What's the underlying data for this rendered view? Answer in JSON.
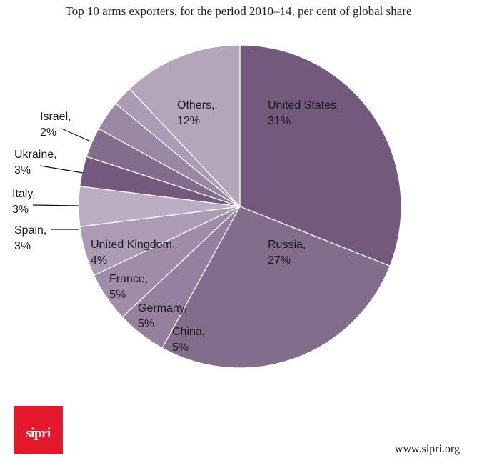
{
  "chart_data": {
    "type": "pie",
    "title": "Top 10 arms exporters, for the period 2010–14, per cent of global share",
    "slices": [
      {
        "label": "United States,",
        "value_label": "31%",
        "value": 31,
        "color": "#735a7d"
      },
      {
        "label": "Russia,",
        "value_label": "27%",
        "value": 27,
        "color": "#836d8c"
      },
      {
        "label": "China,",
        "value_label": "5%",
        "value": 5,
        "color": "#9580a0"
      },
      {
        "label": "Germany,",
        "value_label": "5%",
        "value": 5,
        "color": "#a08ca9"
      },
      {
        "label": "France,",
        "value_label": "5%",
        "value": 5,
        "color": "#ad9ab5"
      },
      {
        "label": "United Kingdom,",
        "value_label": "4%",
        "value": 4,
        "color": "#bcaec2"
      },
      {
        "label": "Spain,",
        "value_label": "3%",
        "value": 3,
        "color": "#735a7d"
      },
      {
        "label": "Italy,",
        "value_label": "3%",
        "value": 3,
        "color": "#836d8c"
      },
      {
        "label": "Ukraine,",
        "value_label": "3%",
        "value": 3,
        "color": "#9a87a3"
      },
      {
        "label": "Israel,",
        "value_label": "2%",
        "value": 2,
        "color": "#ac9bb4"
      },
      {
        "label": "Others,",
        "value_label": "12%",
        "value": 12,
        "color": "#b3a5ba"
      }
    ],
    "start_angle_deg": 0,
    "direction": "clockwise",
    "legend": "none"
  },
  "branding": {
    "logo_text": "sipri",
    "logo_color": "#e3182d",
    "url": "www.sipri.org"
  }
}
